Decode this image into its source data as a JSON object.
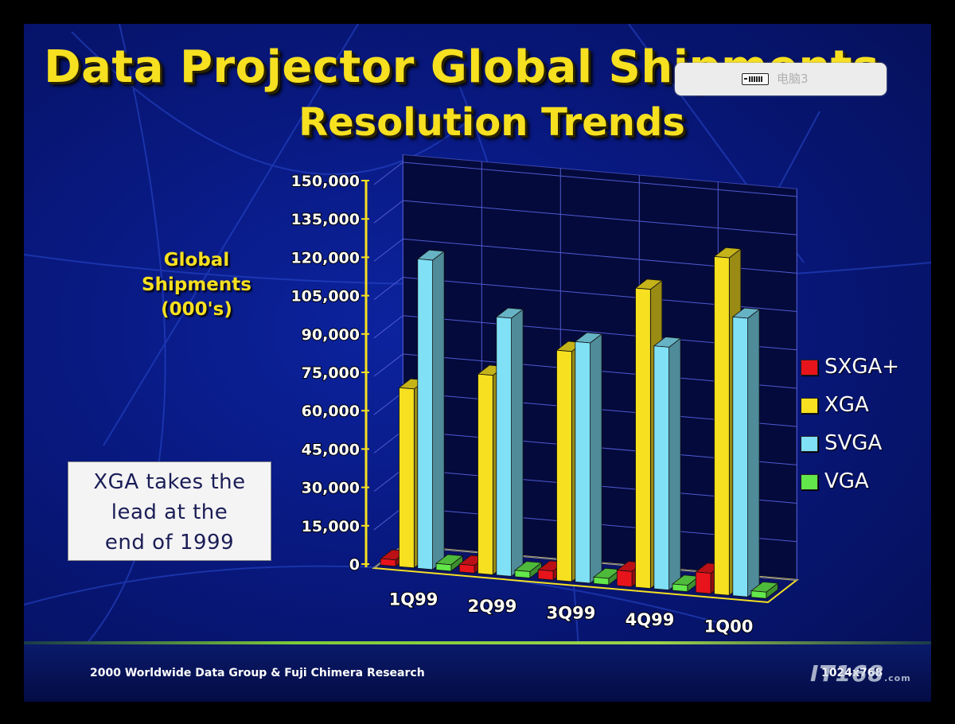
{
  "slide": {
    "title": "Data Projector Global Shipments",
    "subtitle": "Resolution Trends",
    "y_axis_label": [
      "Global",
      "Shipments",
      "(000's)"
    ],
    "callout_lines": [
      "XGA takes the",
      "lead at the",
      "end of 1999"
    ],
    "source": "2000 Worldwide Data Group & Fuji Chimera Research",
    "resolution": "1024x768"
  },
  "overlay": {
    "icon": "monitor-icon",
    "text": "电脑3"
  },
  "watermark": {
    "text": "IT168",
    "suffix": ".com"
  },
  "colors": {
    "SXGA+": "#e8141c",
    "XGA": "#f6e020",
    "SVGA": "#7fe0f6",
    "VGA": "#62e84a",
    "title": "#f6e020"
  },
  "chart_data": {
    "type": "bar",
    "title": "",
    "xlabel": "",
    "ylabel": "Global Shipments (000's)",
    "ylim": [
      0,
      150000
    ],
    "yticks": [
      "0",
      "15,000",
      "30,000",
      "45,000",
      "60,000",
      "75,000",
      "90,000",
      "105,000",
      "120,000",
      "135,000",
      "150,000"
    ],
    "categories": [
      "1Q99",
      "2Q99",
      "3Q99",
      "4Q99",
      "1Q00"
    ],
    "series": [
      {
        "name": "SXGA+",
        "values": [
          2500,
          3000,
          3500,
          6000,
          8000
        ]
      },
      {
        "name": "XGA",
        "values": [
          70000,
          78000,
          90000,
          117000,
          132000
        ]
      },
      {
        "name": "SVGA",
        "values": [
          121000,
          101000,
          94000,
          95000,
          109000
        ]
      },
      {
        "name": "VGA",
        "values": [
          2500,
          2500,
          2500,
          2500,
          2500
        ]
      }
    ],
    "grid": true,
    "legend": "right"
  }
}
